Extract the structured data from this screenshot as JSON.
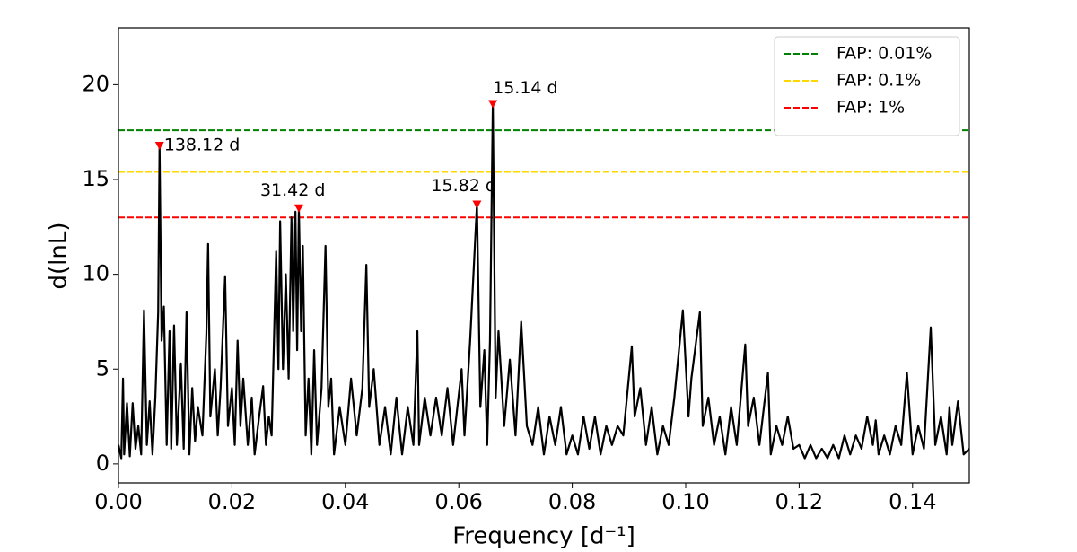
{
  "chart_data": {
    "type": "line",
    "xlabel": "Frequency [d⁻¹]",
    "ylabel": "d(lnL)",
    "color": "#000000",
    "x": [
      0.0,
      0.0005,
      0.0008,
      0.001,
      0.0015,
      0.002,
      0.0025,
      0.003,
      0.0035,
      0.004,
      0.0045,
      0.005,
      0.0055,
      0.006,
      0.0065,
      0.007,
      0.00724,
      0.0076,
      0.008,
      0.0085,
      0.009,
      0.0093,
      0.0098,
      0.0103,
      0.011,
      0.0115,
      0.012,
      0.0125,
      0.013,
      0.0135,
      0.014,
      0.0148,
      0.0155,
      0.0158,
      0.0162,
      0.017,
      0.0175,
      0.018,
      0.0188,
      0.0193,
      0.02,
      0.0205,
      0.021,
      0.0215,
      0.022,
      0.0228,
      0.0235,
      0.024,
      0.0248,
      0.0255,
      0.026,
      0.0265,
      0.027,
      0.0278,
      0.0282,
      0.0285,
      0.029,
      0.0295,
      0.03,
      0.0305,
      0.0308,
      0.0312,
      0.0315,
      0.0318,
      0.0322,
      0.0325,
      0.033,
      0.0335,
      0.034,
      0.0345,
      0.035,
      0.0358,
      0.0365,
      0.037,
      0.0375,
      0.038,
      0.039,
      0.04,
      0.041,
      0.042,
      0.043,
      0.0437,
      0.0442,
      0.045,
      0.046,
      0.047,
      0.048,
      0.049,
      0.05,
      0.051,
      0.052,
      0.0527,
      0.053,
      0.054,
      0.055,
      0.056,
      0.057,
      0.058,
      0.059,
      0.0605,
      0.061,
      0.062,
      0.0632,
      0.0638,
      0.0645,
      0.065,
      0.0655,
      0.066,
      0.0665,
      0.067,
      0.068,
      0.069,
      0.07,
      0.071,
      0.072,
      0.073,
      0.074,
      0.075,
      0.076,
      0.077,
      0.078,
      0.079,
      0.08,
      0.081,
      0.082,
      0.083,
      0.084,
      0.085,
      0.086,
      0.087,
      0.088,
      0.089,
      0.0905,
      0.091,
      0.092,
      0.093,
      0.094,
      0.095,
      0.096,
      0.097,
      0.098,
      0.0995,
      0.1005,
      0.101,
      0.1025,
      0.103,
      0.104,
      0.105,
      0.106,
      0.107,
      0.108,
      0.109,
      0.1105,
      0.111,
      0.112,
      0.113,
      0.1145,
      0.115,
      0.116,
      0.117,
      0.118,
      0.119,
      0.12,
      0.121,
      0.122,
      0.123,
      0.124,
      0.125,
      0.126,
      0.127,
      0.128,
      0.129,
      0.13,
      0.131,
      0.132,
      0.133,
      0.1335,
      0.134,
      0.135,
      0.136,
      0.137,
      0.138,
      0.139,
      0.14,
      0.141,
      0.142,
      0.1432,
      0.144,
      0.145,
      0.146,
      0.1465,
      0.147,
      0.148,
      0.149,
      0.15
    ],
    "values": [
      1.0,
      0.3,
      4.5,
      0.5,
      3.2,
      0.4,
      3.2,
      0.8,
      2.0,
      0.5,
      8.1,
      1.0,
      3.3,
      0.5,
      3.5,
      8.0,
      16.8,
      6.5,
      8.3,
      1.0,
      7.0,
      0.8,
      7.3,
      1.0,
      5.3,
      0.8,
      8.0,
      0.5,
      4.0,
      1.2,
      3.0,
      1.5,
      6.9,
      11.6,
      2.5,
      5.0,
      1.5,
      4.0,
      9.9,
      2.0,
      4.0,
      1.0,
      6.5,
      2.0,
      4.5,
      1.0,
      3.5,
      0.5,
      2.5,
      4.1,
      1.0,
      2.5,
      1.5,
      11.2,
      5.0,
      12.8,
      5.0,
      10.0,
      4.5,
      13.0,
      7.0,
      13.3,
      6.0,
      13.5,
      7.0,
      11.5,
      1.5,
      4.5,
      0.5,
      6.0,
      1.0,
      4.0,
      11.5,
      3.0,
      4.5,
      0.5,
      3.0,
      1.0,
      4.5,
      1.5,
      4.0,
      10.5,
      3.0,
      5.0,
      1.0,
      3.0,
      0.5,
      3.5,
      0.5,
      3.0,
      1.0,
      7.0,
      1.0,
      3.5,
      1.5,
      3.5,
      1.5,
      4.0,
      1.0,
      5.0,
      1.5,
      6.5,
      13.7,
      3.0,
      6.0,
      1.0,
      6.5,
      19.0,
      3.5,
      7.0,
      2.0,
      5.5,
      1.5,
      7.5,
      2.0,
      1.0,
      3.0,
      0.5,
      2.5,
      1.0,
      3.0,
      0.5,
      1.5,
      0.5,
      2.5,
      0.8,
      2.5,
      0.5,
      2.0,
      1.0,
      2.0,
      1.5,
      6.2,
      2.5,
      4.0,
      1.0,
      3.0,
      0.5,
      2.0,
      1.0,
      3.5,
      8.1,
      2.5,
      4.5,
      8.0,
      2.0,
      3.5,
      1.0,
      2.5,
      0.5,
      3.0,
      1.0,
      6.3,
      2.0,
      3.5,
      1.0,
      4.8,
      0.5,
      2.0,
      1.0,
      2.5,
      0.8,
      1.0,
      0.3,
      1.0,
      0.3,
      0.8,
      0.3,
      1.0,
      0.3,
      1.5,
      0.5,
      1.5,
      0.8,
      2.5,
      1.0,
      2.3,
      0.5,
      1.5,
      0.5,
      2.0,
      1.0,
      4.8,
      0.5,
      2.0,
      0.8,
      7.2,
      1.0,
      2.5,
      0.5,
      3.0,
      1.0,
      3.3,
      0.5,
      0.8
    ],
    "xlim": [
      0,
      0.15
    ],
    "ylim": [
      -1,
      23
    ],
    "xticks": [
      {
        "value": 0,
        "label": "0.00"
      },
      0.02,
      0.04,
      0.06,
      0.08,
      {
        "value": 0.1,
        "label": "0.10"
      },
      0.12,
      0.14
    ],
    "yticks": [
      0,
      5,
      10,
      15,
      20
    ],
    "thresholds": [
      {
        "name": "FAP: 0.01%",
        "value": 17.6,
        "color": "#008000"
      },
      {
        "name": "FAP: 0.1%",
        "value": 15.4,
        "color": "#ffd700"
      },
      {
        "name": "FAP: 1%",
        "value": 13.0,
        "color": "#ff0000"
      }
    ],
    "peaks": [
      {
        "label": "138.12 d",
        "x": 0.00724,
        "y": 16.8
      },
      {
        "label": "31.42 d",
        "x": 0.0318,
        "y": 13.5
      },
      {
        "label": "15.82 d",
        "x": 0.0632,
        "y": 13.7
      },
      {
        "label": "15.14 d",
        "x": 0.066,
        "y": 19.0
      }
    ],
    "peak_color": "#ff0000",
    "legend_loc": "upper right"
  }
}
